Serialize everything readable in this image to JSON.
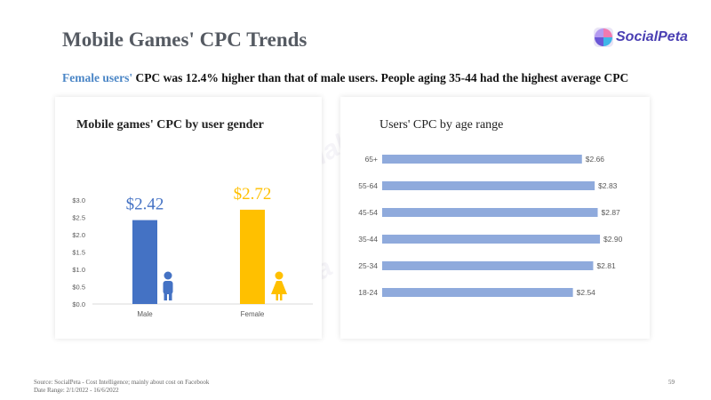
{
  "header": {
    "title": "Mobile Games' CPC Trends",
    "subtitle_highlight": "Female users'",
    "subtitle_rest": " CPC was 12.4% higher than that of male users. People aging 35-44 had the highest average CPC"
  },
  "logo": {
    "text": "SocialPeta",
    "icon": "socialpeta-logo-icon"
  },
  "watermark": "SocialPeta",
  "colors": {
    "male": "#4472c4",
    "female": "#ffc000",
    "age_bar": "#8faadc",
    "highlight": "#4b86c6"
  },
  "chart_data": [
    {
      "type": "bar",
      "title": "Mobile games' CPC by user gender",
      "categories": [
        "Male",
        "Female"
      ],
      "values": [
        2.42,
        2.72
      ],
      "data_labels": [
        "$2.42",
        "$2.72"
      ],
      "yticks": [
        "$0.0",
        "$0.5",
        "$1.0",
        "$1.5",
        "$2.0",
        "$2.5",
        "$3.0"
      ],
      "ylim": [
        0,
        3.0
      ],
      "grid": false,
      "icons": [
        "male-person-icon",
        "female-person-icon"
      ]
    },
    {
      "type": "bar",
      "orientation": "horizontal",
      "title": "Users' CPC by age range",
      "categories": [
        "65+",
        "55-64",
        "45-54",
        "35-44",
        "25-34",
        "18-24"
      ],
      "values": [
        2.66,
        2.83,
        2.87,
        2.9,
        2.81,
        2.54
      ],
      "data_labels": [
        "$2.66",
        "$2.83",
        "$2.87",
        "$2.90",
        "$2.81",
        "$2.54"
      ],
      "grid": false
    }
  ],
  "footer": {
    "source": "Source: SocialPeta - Cost Intelligence; mainly about cost on Facebook",
    "date_range": "Date Range: 2/1/2022 - 16/6/2022",
    "page_number": "59"
  }
}
